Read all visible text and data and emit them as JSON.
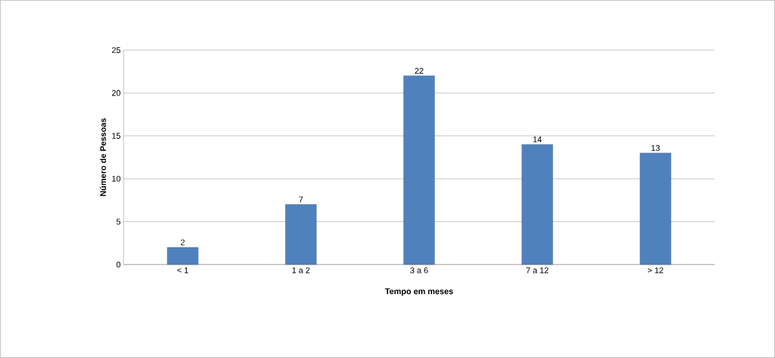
{
  "chart_data": {
    "type": "bar",
    "xlabel": "Tempo em meses",
    "ylabel": "Número de Pessoas",
    "categories": [
      "< 1",
      "1 a 2",
      "3 a 6",
      "7 a 12",
      "> 12"
    ],
    "values": [
      2,
      7,
      22,
      14,
      13
    ],
    "color": "#4f81bd",
    "ylim": [
      0,
      25
    ],
    "yticks": [
      0,
      5,
      10,
      15,
      20,
      25
    ],
    "grid": "y",
    "data_labels": true
  }
}
